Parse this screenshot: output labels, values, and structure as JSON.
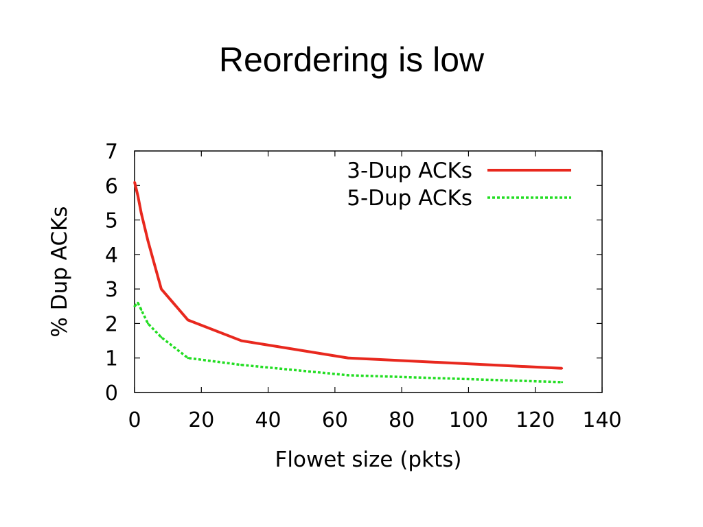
{
  "slide": {
    "title": "Reordering is low"
  },
  "chart_data": {
    "type": "line",
    "title": "",
    "xlabel": "Flowet size (pkts)",
    "ylabel": "% Dup ACKs",
    "xlim": [
      0,
      140
    ],
    "ylim": [
      0,
      7
    ],
    "xticks": [
      0,
      20,
      40,
      60,
      80,
      100,
      120,
      140
    ],
    "yticks": [
      0,
      1,
      2,
      3,
      4,
      5,
      6,
      7
    ],
    "grid": false,
    "legend_position": "top-right",
    "series": [
      {
        "name": "3-Dup ACKs",
        "color": "#e8281e",
        "style": "solid",
        "x": [
          0,
          1,
          2,
          4,
          8,
          16,
          32,
          64,
          128
        ],
        "y": [
          6.1,
          5.7,
          5.2,
          4.4,
          3.0,
          2.1,
          1.5,
          1.0,
          0.7
        ]
      },
      {
        "name": "5-Dup ACKs",
        "color": "#22dd22",
        "style": "dashed",
        "x": [
          0,
          1,
          2,
          4,
          8,
          16,
          32,
          64,
          128
        ],
        "y": [
          2.5,
          2.6,
          2.4,
          2.0,
          1.6,
          1.0,
          0.8,
          0.5,
          0.3
        ]
      }
    ]
  }
}
